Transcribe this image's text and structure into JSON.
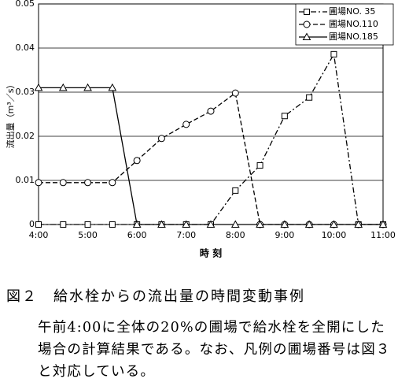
{
  "chart_data": {
    "type": "line",
    "ylabel": "流出量（m³／s）",
    "xlabel": "時 刻",
    "x": [
      4,
      4.5,
      5,
      5.5,
      6,
      6.5,
      7,
      7.5,
      8,
      8.5,
      9,
      9.5,
      10,
      10.5,
      11
    ],
    "xlim": [
      4,
      11
    ],
    "xticks": [
      {
        "value": 4,
        "label": "4:00"
      },
      {
        "value": 5,
        "label": "5:00"
      },
      {
        "value": 6,
        "label": "6:00"
      },
      {
        "value": 7,
        "label": "7:00"
      },
      {
        "value": 8,
        "label": "8:00"
      },
      {
        "value": 9,
        "label": "9:00"
      },
      {
        "value": 10,
        "label": "10:00"
      },
      {
        "value": 11,
        "label": "11:00"
      }
    ],
    "ylim": [
      0,
      0.05
    ],
    "yticks": [
      0,
      0.01,
      0.02,
      0.03,
      0.04,
      0.05
    ],
    "grid": true,
    "legend": "upper right",
    "series": [
      {
        "name": "圃場NO. 35",
        "color": "#000000",
        "marker": "square",
        "dash": "dashdot",
        "values": [
          0,
          0,
          0,
          0,
          0,
          0,
          0,
          0,
          0.0077,
          0.0134,
          0.0246,
          0.0288,
          0.0386,
          0,
          0
        ]
      },
      {
        "name": "圃場NO.110",
        "color": "#000000",
        "marker": "circle",
        "dash": "dashed",
        "values": [
          0.0095,
          0.0095,
          0.0095,
          0.0095,
          0.0145,
          0.0195,
          0.0227,
          0.0257,
          0.0298,
          0,
          0,
          0,
          0,
          0,
          0
        ]
      },
      {
        "name": "圃場NO.185",
        "color": "#000000",
        "marker": "triangle",
        "dash": "solid",
        "values": [
          0.031,
          0.031,
          0.031,
          0.031,
          0,
          0,
          0,
          0,
          0,
          0,
          0,
          0,
          0,
          0,
          0
        ]
      }
    ]
  },
  "caption": {
    "title": "図２　給水栓からの流出量の時間変動事例",
    "text": "午前4:00に全体の20%の圃場で給水栓を全開にした場合の計算結果である。なお、凡例の圃場番号は図３と対応している。"
  }
}
